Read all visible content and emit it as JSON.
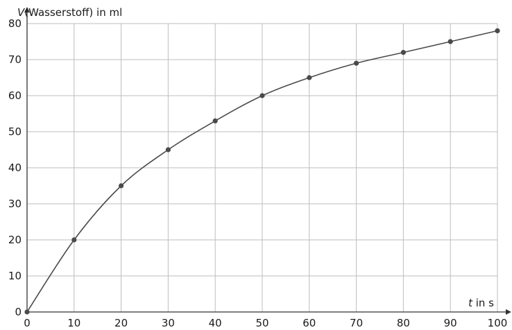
{
  "chart_data": {
    "type": "line",
    "title": "",
    "ylabel": {
      "variable": "V",
      "text": "(Wasserstoff) in ml"
    },
    "xlabel": {
      "variable": "t",
      "text": " in s"
    },
    "xlim": [
      0,
      100
    ],
    "ylim": [
      0,
      80
    ],
    "x_ticks": [
      0,
      10,
      20,
      30,
      40,
      50,
      60,
      70,
      80,
      90,
      100
    ],
    "y_ticks": [
      0,
      10,
      20,
      30,
      40,
      50,
      60,
      70,
      80
    ],
    "grid": true,
    "smooth": true,
    "colors": {
      "grid": "#bdbdbd",
      "axis": "#333333",
      "series": "#4a4a4a"
    },
    "series": [
      {
        "x": [
          0,
          10,
          20,
          30,
          40,
          50,
          60,
          70,
          80,
          90,
          100
        ],
        "values": [
          0,
          20,
          35,
          45,
          53,
          60,
          65,
          69,
          72,
          75,
          78
        ]
      }
    ]
  }
}
